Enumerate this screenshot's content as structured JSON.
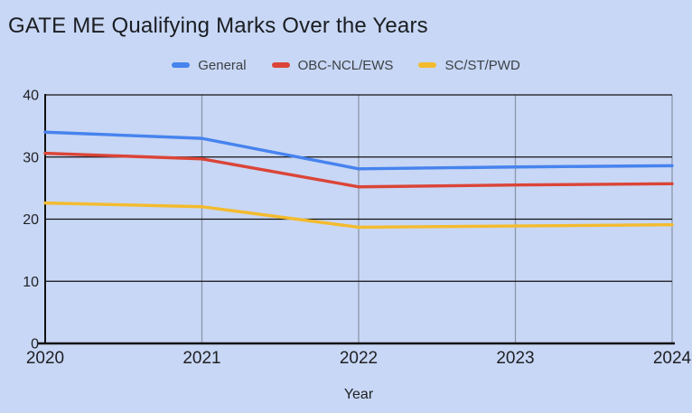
{
  "title": "GATE ME Qualifying Marks Over the Years",
  "chart_data": {
    "type": "line",
    "x": [
      2020,
      2021,
      2022,
      2023,
      2024
    ],
    "series": [
      {
        "name": "General",
        "color": "#4683EE",
        "values": [
          34,
          33,
          28.1,
          28.4,
          28.6
        ]
      },
      {
        "name": "OBC-NCL/EWS",
        "color": "#DB4437",
        "values": [
          30.6,
          29.7,
          25.2,
          25.5,
          25.7
        ]
      },
      {
        "name": "SC/ST/PWD",
        "color": "#F3BB2E",
        "values": [
          22.6,
          22,
          18.7,
          18.9,
          19.1
        ]
      }
    ],
    "xlabel": "Year",
    "ylabel": "",
    "ylim": [
      0,
      40
    ],
    "yticks": [
      0,
      10,
      20,
      30,
      40
    ],
    "grid": {
      "horizontal": true,
      "vertical": true
    },
    "legend_position": "top"
  },
  "colors": {
    "background": "#C8D7F5",
    "horizontal_grid": "#111111",
    "vertical_grid": "#8C96AA",
    "axis": "#111111",
    "tick_text": "#202124",
    "title_text": "#1A1D21",
    "legend_text": "#3B4045"
  }
}
